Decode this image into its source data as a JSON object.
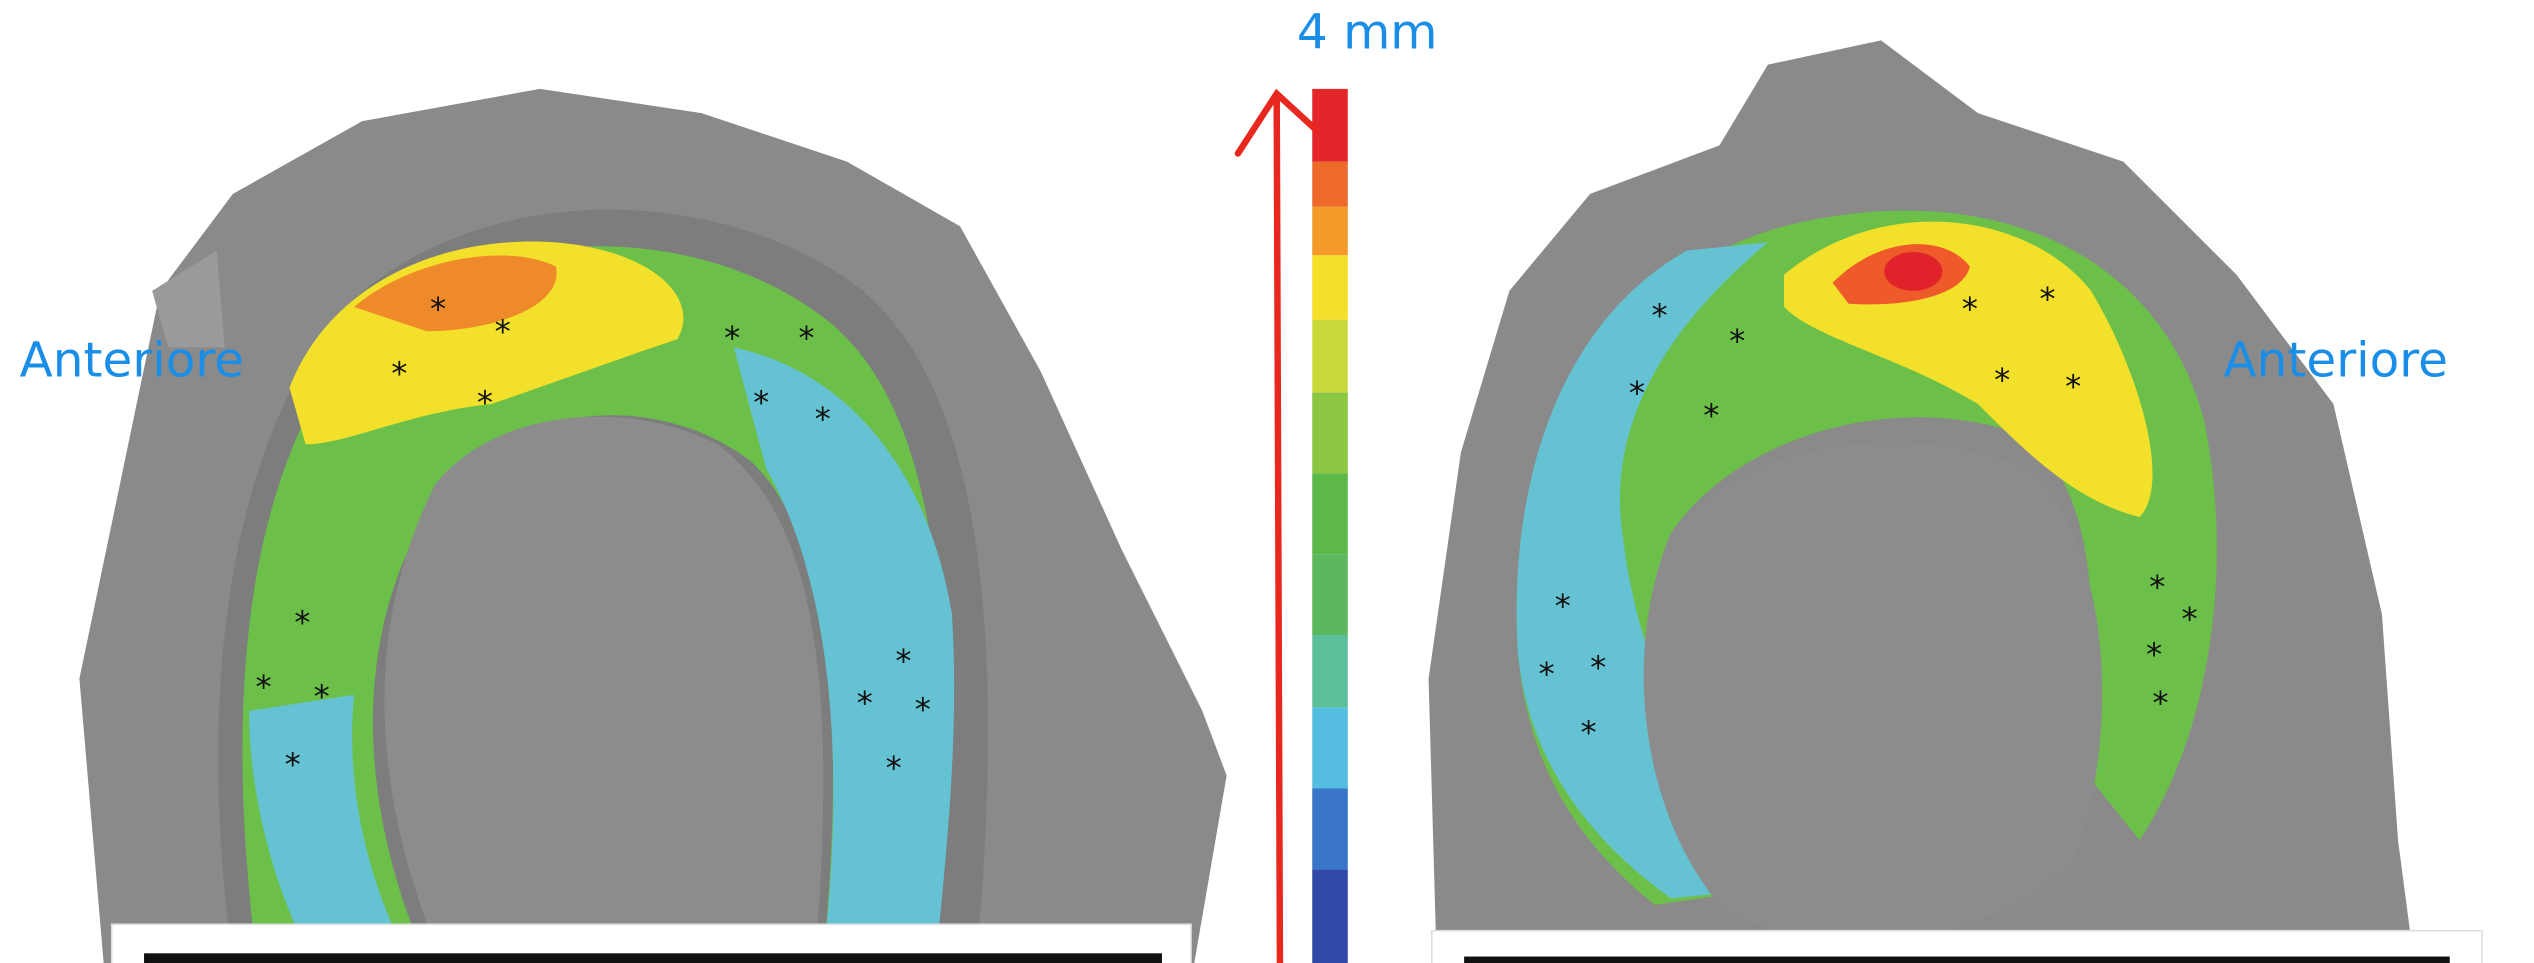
{
  "labels": {
    "scale": "4 mm",
    "left": "Anteriore",
    "right": "Anteriore"
  }
}
